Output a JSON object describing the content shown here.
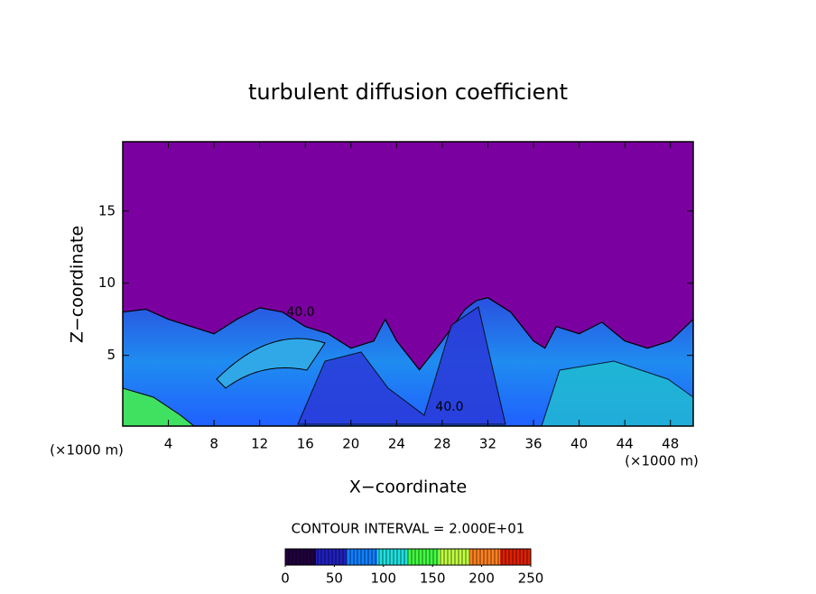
{
  "chart_data": {
    "type": "contour",
    "title": "turbulent diffusion coefficient",
    "x_label": "X−coordinate",
    "y_label": "Z−coordinate",
    "x_unit_left": "(×1000 m)",
    "x_unit_right": "(×1000 m)",
    "xlim": [
      0,
      50
    ],
    "ylim": [
      0.1,
      19.8
    ],
    "xticks": [
      4,
      8,
      12,
      16,
      20,
      24,
      28,
      32,
      36,
      40,
      44,
      48
    ],
    "yticks": [
      5,
      10,
      15
    ],
    "background_color": "#7b00a0",
    "layer_top": {
      "color": "#1a6cf0",
      "x": [
        0,
        2,
        4,
        6,
        8,
        10,
        12,
        14,
        16,
        18,
        20,
        22,
        23,
        24,
        26,
        28,
        30,
        31,
        32,
        34,
        36,
        37,
        38,
        40,
        42,
        44,
        46,
        48,
        50
      ],
      "values": [
        8,
        8.2,
        7.5,
        7,
        6.5,
        7.5,
        8.3,
        8,
        7,
        6.5,
        5.5,
        6,
        7.5,
        6,
        4,
        6,
        8.2,
        8.8,
        9,
        8,
        6,
        5.5,
        7,
        6.5,
        7.3,
        6,
        5.5,
        6,
        7.5
      ]
    },
    "contour_labels": [
      {
        "value": 40,
        "label": "40.0"
      },
      {
        "value": 40,
        "label": "40.0"
      }
    ],
    "contour_interval_text": "CONTOUR INTERVAL = 2.000E+01",
    "colorbar": {
      "lim": [
        0,
        250
      ],
      "ticks": [
        0,
        50,
        100,
        150,
        200,
        250
      ],
      "colors": [
        "#200040",
        "#2020c0",
        "#1080ff",
        "#20e0e0",
        "#40ff40",
        "#c0ff40",
        "#ff8020",
        "#e02000"
      ]
    }
  }
}
